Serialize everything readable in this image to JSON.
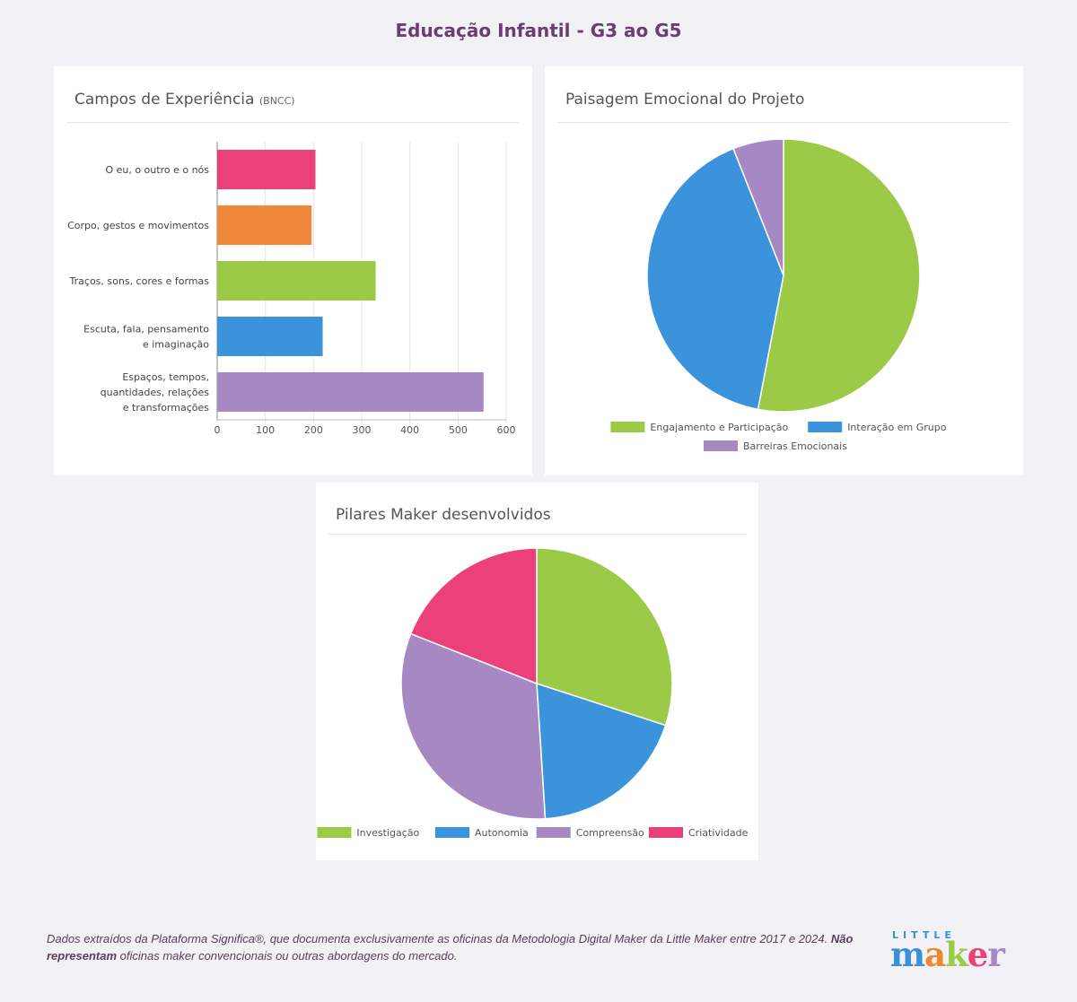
{
  "page": {
    "title": "Educação Infantil - G3 ao G5"
  },
  "bar_card": {
    "title": "Campos de Experiência",
    "title_suffix": "(BNCC)"
  },
  "emotional_card": {
    "title": "Paisagem Emocional do Projeto"
  },
  "pillars_card": {
    "title": "Pilares Maker desenvolvidos"
  },
  "footer": {
    "note_part1": "Dados extraídos da Plataforma Significa®, que documenta exclusivamente as oficinas da Metodologia Digital Maker da Little Maker entre 2017 e 2024. ",
    "note_bold": "Não representam",
    "note_part2": " oficinas maker convencionais ou outras abordagens do mercado."
  },
  "logo": {
    "top_text": "LITTLE",
    "letters": [
      "m",
      "a",
      "k",
      "e",
      "r"
    ]
  },
  "chart_data": [
    {
      "type": "bar",
      "orientation": "horizontal",
      "title": "Campos de Experiência (BNCC)",
      "categories": [
        [
          "O eu, o outro e o nós"
        ],
        [
          "Corpo, gestos e movimentos"
        ],
        [
          "Traços, sons, cores e formas"
        ],
        [
          "Escuta, fala, pensamento",
          "e imaginação"
        ],
        [
          "Espaços, tempos,",
          "quantidades, relações",
          "e transformações"
        ]
      ],
      "values": [
        204,
        196,
        329,
        219,
        553
      ],
      "colors": [
        "#ec407a",
        "#f0883a",
        "#9bcb46",
        "#3b93dc",
        "#a689c2"
      ],
      "xlim": [
        0,
        600
      ],
      "xticks": [
        0,
        100,
        200,
        300,
        400,
        500,
        600
      ],
      "grid": true
    },
    {
      "type": "pie",
      "title": "Paisagem Emocional do Projeto",
      "labels": [
        "Engajamento e Participação",
        "Interação em Grupo",
        "Barreiras Emocionais"
      ],
      "values": [
        53,
        41,
        6
      ],
      "colors": [
        "#9bcb46",
        "#3b93dc",
        "#a689c2"
      ],
      "legend": "bottom"
    },
    {
      "type": "pie",
      "title": "Pilares Maker desenvolvidos",
      "labels": [
        "Investigação",
        "Autonomia",
        "Compreensão",
        "Criatividade"
      ],
      "values": [
        30,
        19,
        32,
        19
      ],
      "colors": [
        "#9bcb46",
        "#3b93dc",
        "#a689c2",
        "#ec407a"
      ],
      "legend": "bottom"
    }
  ]
}
